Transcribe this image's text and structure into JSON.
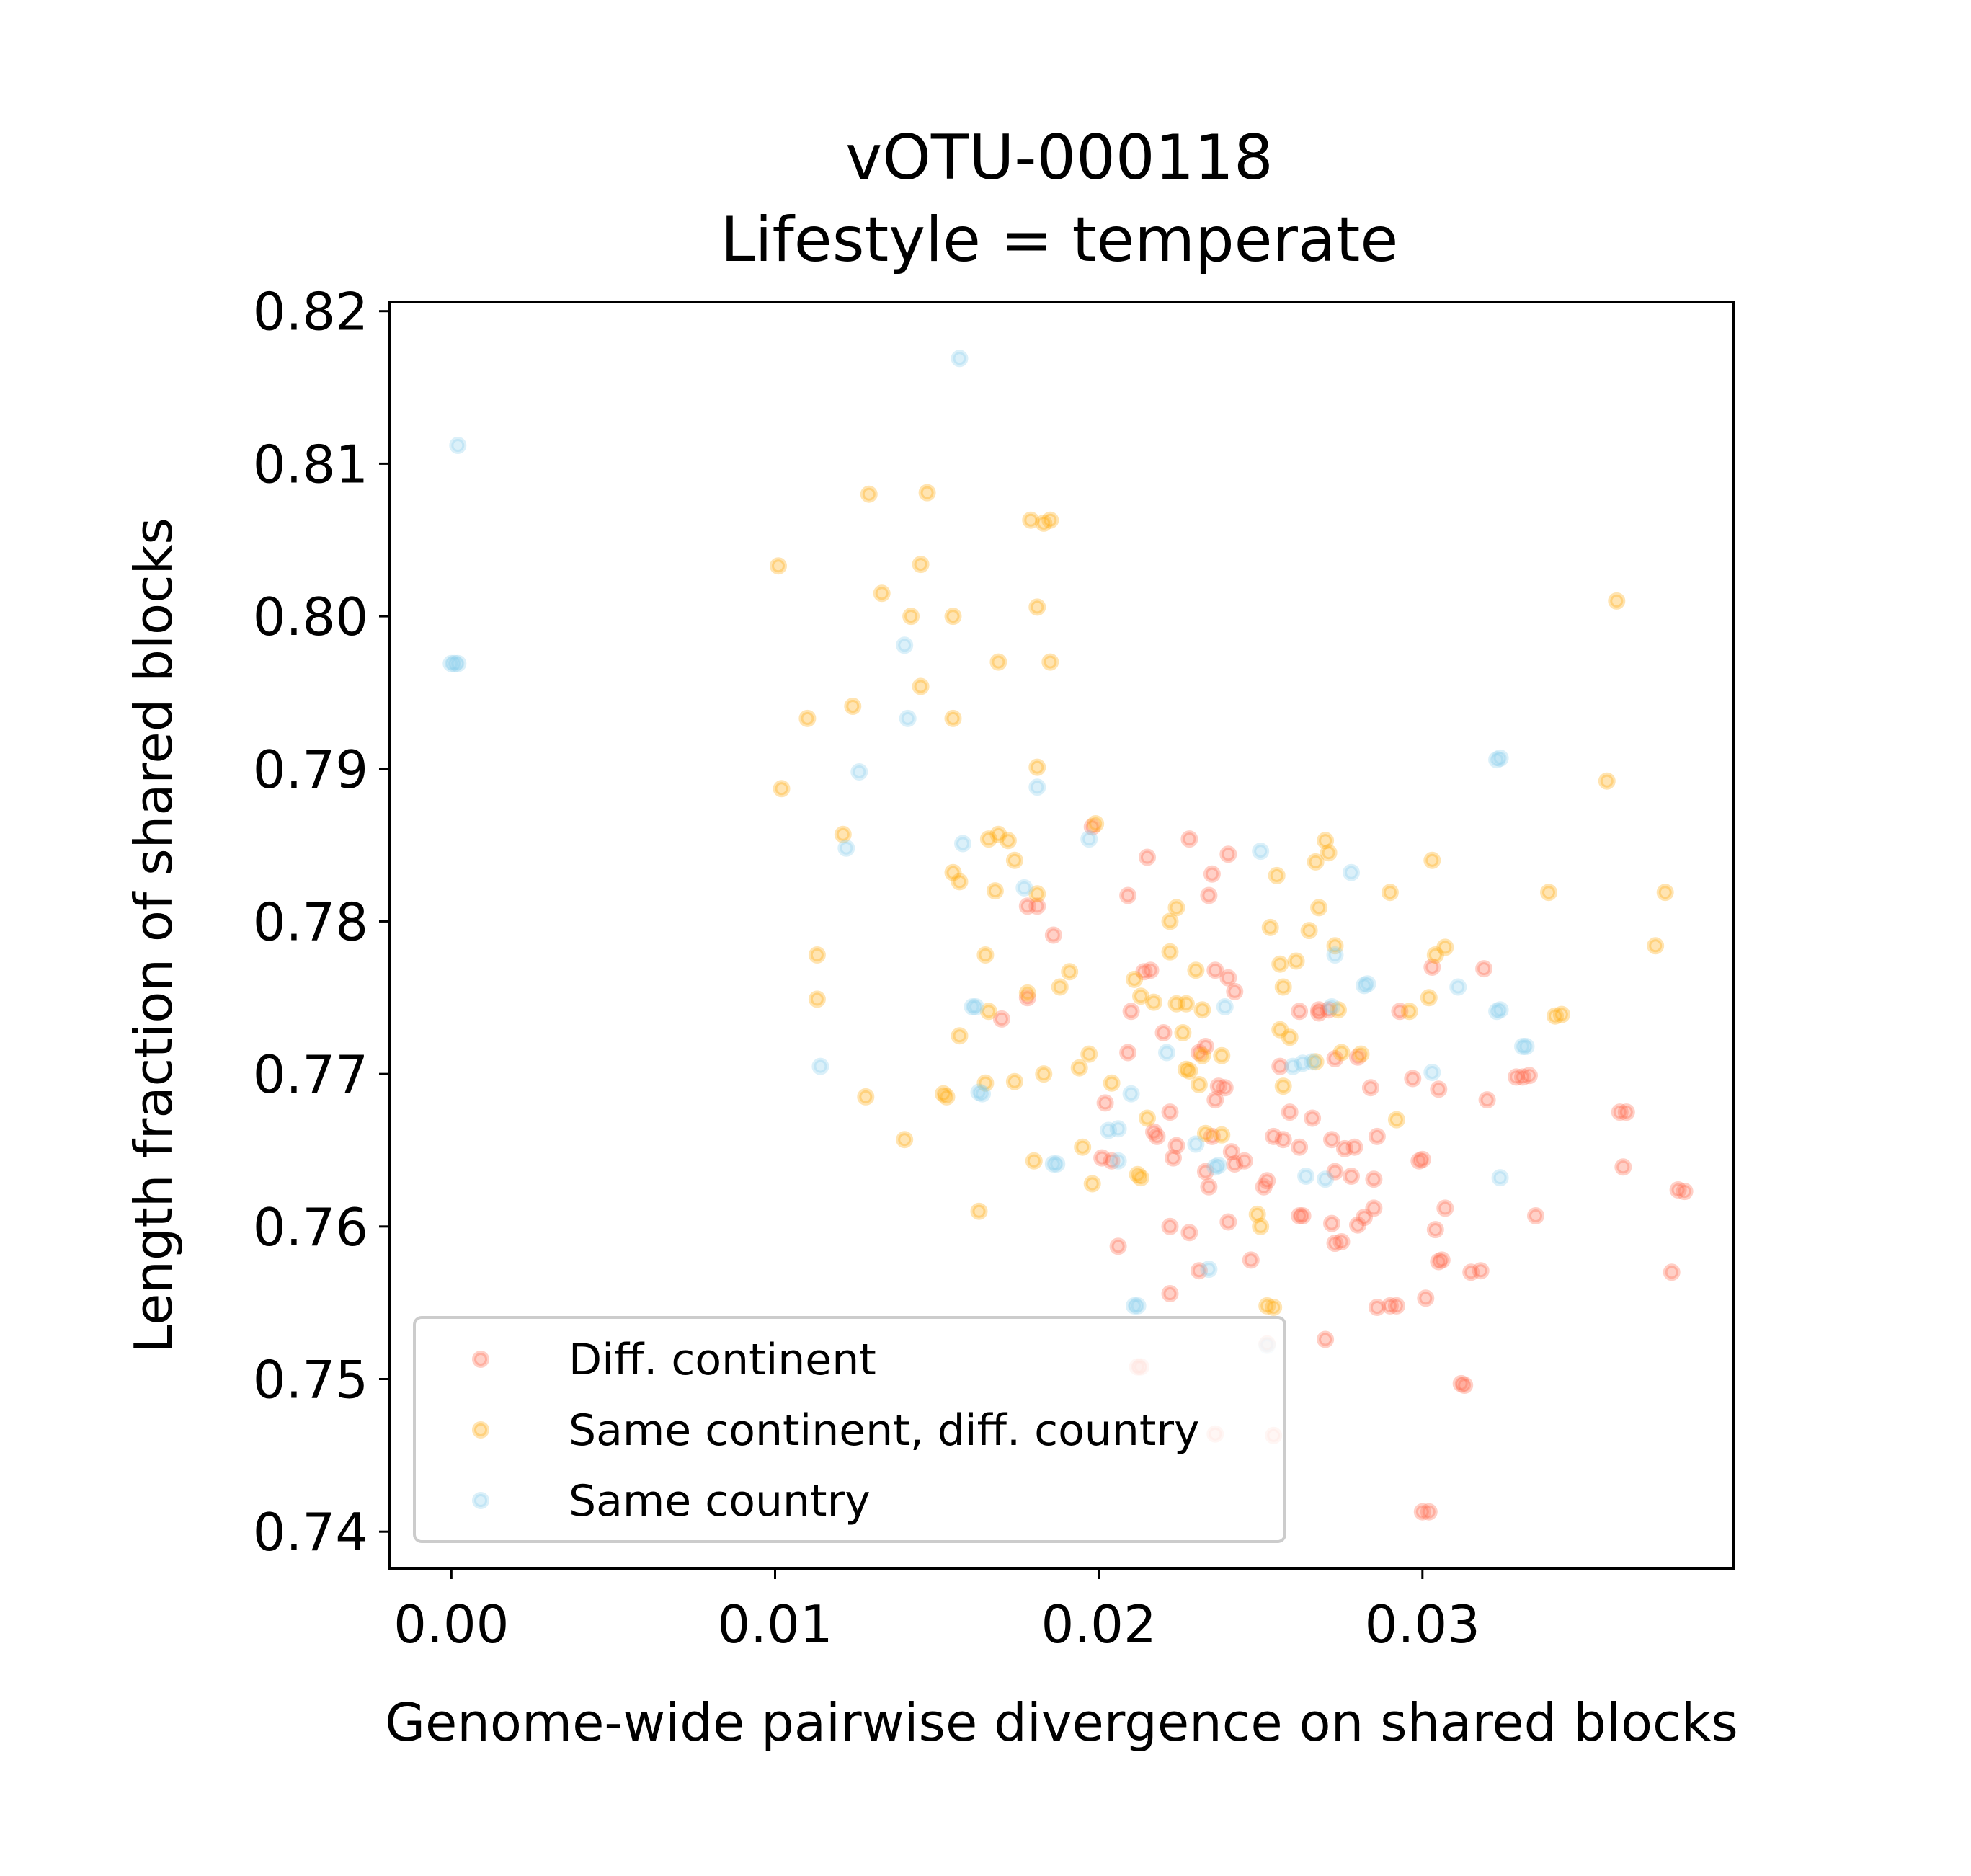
{
  "chart_data": {
    "type": "scatter",
    "title": "vOTU-000118",
    "subtitle": "Lifestyle = temperate",
    "xlabel": "Genome-wide pairwise divergence on shared blocks",
    "ylabel": "Length fraction of shared blocks",
    "xlim": [
      -0.0019,
      0.0396
    ],
    "ylim": [
      0.7376,
      0.8206
    ],
    "xticks": [
      "0.00",
      "0.01",
      "0.02",
      "0.03"
    ],
    "xtick_values": [
      0.0,
      0.01,
      0.02,
      0.03
    ],
    "yticks": [
      "0.74",
      "0.75",
      "0.76",
      "0.77",
      "0.78",
      "0.79",
      "0.80",
      "0.81",
      "0.82"
    ],
    "ytick_values": [
      0.74,
      0.75,
      0.76,
      0.77,
      0.78,
      0.79,
      0.8,
      0.81,
      0.82
    ],
    "legend_position": "lower-left",
    "series": [
      {
        "name": "Diff. continent",
        "color": "#ff6347",
        "points": [
          [
            0.0198,
            0.7862
          ],
          [
            0.0209,
            0.7817
          ],
          [
            0.0215,
            0.7842
          ],
          [
            0.0228,
            0.7854
          ],
          [
            0.024,
            0.7844
          ],
          [
            0.0235,
            0.7831
          ],
          [
            0.0234,
            0.7817
          ],
          [
            0.0178,
            0.781
          ],
          [
            0.0181,
            0.781
          ],
          [
            0.0186,
            0.7791
          ],
          [
            0.0178,
            0.775
          ],
          [
            0.017,
            0.7736
          ],
          [
            0.0214,
            0.7767
          ],
          [
            0.0216,
            0.7768
          ],
          [
            0.0236,
            0.7768
          ],
          [
            0.024,
            0.7763
          ],
          [
            0.0242,
            0.7754
          ],
          [
            0.021,
            0.7741
          ],
          [
            0.022,
            0.7727
          ],
          [
            0.0209,
            0.7714
          ],
          [
            0.0231,
            0.7714
          ],
          [
            0.0237,
            0.7692
          ],
          [
            0.0239,
            0.7691
          ],
          [
            0.0236,
            0.7683
          ],
          [
            0.0218,
            0.7659
          ],
          [
            0.0224,
            0.7653
          ],
          [
            0.0223,
            0.7645
          ],
          [
            0.0235,
            0.7659
          ],
          [
            0.0241,
            0.7649
          ],
          [
            0.0245,
            0.7643
          ],
          [
            0.0242,
            0.7641
          ],
          [
            0.0201,
            0.7645
          ],
          [
            0.0204,
            0.7643
          ],
          [
            0.0202,
            0.7681
          ],
          [
            0.0233,
            0.7636
          ],
          [
            0.0234,
            0.7626
          ],
          [
            0.0252,
            0.763
          ],
          [
            0.0251,
            0.7626
          ],
          [
            0.0254,
            0.7659
          ],
          [
            0.0257,
            0.7657
          ],
          [
            0.0262,
            0.7652
          ],
          [
            0.0266,
            0.7671
          ],
          [
            0.0256,
            0.7705
          ],
          [
            0.0262,
            0.7741
          ],
          [
            0.0268,
            0.7742
          ],
          [
            0.0273,
            0.771
          ],
          [
            0.0268,
            0.774
          ],
          [
            0.0271,
            0.7742
          ],
          [
            0.028,
            0.7711
          ],
          [
            0.0284,
            0.7691
          ],
          [
            0.0276,
            0.7651
          ],
          [
            0.0279,
            0.7652
          ],
          [
            0.0286,
            0.7659
          ],
          [
            0.0272,
            0.7657
          ],
          [
            0.0273,
            0.7636
          ],
          [
            0.0278,
            0.7633
          ],
          [
            0.0285,
            0.7631
          ],
          [
            0.0272,
            0.7602
          ],
          [
            0.0262,
            0.7607
          ],
          [
            0.0263,
            0.7607
          ],
          [
            0.0275,
            0.759
          ],
          [
            0.0282,
            0.7606
          ],
          [
            0.0285,
            0.7612
          ],
          [
            0.028,
            0.7601
          ],
          [
            0.0273,
            0.7589
          ],
          [
            0.0293,
            0.7741
          ],
          [
            0.0297,
            0.7697
          ],
          [
            0.0305,
            0.769
          ],
          [
            0.0303,
            0.777
          ],
          [
            0.0319,
            0.7769
          ],
          [
            0.03,
            0.7644
          ],
          [
            0.0299,
            0.7643
          ],
          [
            0.0307,
            0.7612
          ],
          [
            0.0304,
            0.7598
          ],
          [
            0.0305,
            0.7577
          ],
          [
            0.0306,
            0.7578
          ],
          [
            0.0301,
            0.7553
          ],
          [
            0.0315,
            0.757
          ],
          [
            0.0318,
            0.7571
          ],
          [
            0.032,
            0.7683
          ],
          [
            0.0329,
            0.7698
          ],
          [
            0.0331,
            0.7698
          ],
          [
            0.0333,
            0.7699
          ],
          [
            0.0335,
            0.7607
          ],
          [
            0.0292,
            0.7548
          ],
          [
            0.029,
            0.7548
          ],
          [
            0.0286,
            0.7547
          ],
          [
            0.027,
            0.7526
          ],
          [
            0.0312,
            0.7497
          ],
          [
            0.0313,
            0.7496
          ],
          [
            0.0302,
            0.7413
          ],
          [
            0.03,
            0.7413
          ],
          [
            0.0361,
            0.7675
          ],
          [
            0.0363,
            0.7675
          ],
          [
            0.0362,
            0.7639
          ],
          [
            0.0379,
            0.7624
          ],
          [
            0.0381,
            0.7623
          ],
          [
            0.0377,
            0.757
          ],
          [
            0.0212,
            0.7508
          ],
          [
            0.0213,
            0.7508
          ],
          [
            0.0222,
            0.7556
          ],
          [
            0.0228,
            0.7596
          ],
          [
            0.0222,
            0.76
          ],
          [
            0.0231,
            0.7571
          ],
          [
            0.024,
            0.7603
          ],
          [
            0.0247,
            0.7578
          ],
          [
            0.0252,
            0.7523
          ],
          [
            0.0254,
            0.7463
          ],
          [
            0.0236,
            0.7464
          ],
          [
            0.0206,
            0.7587
          ],
          [
            0.0233,
            0.7718
          ],
          [
            0.0259,
            0.7675
          ],
          [
            0.0222,
            0.7675
          ],
          [
            0.0217,
            0.7662
          ]
        ]
      },
      {
        "name": "Same continent, diff. country",
        "color": "#ffa500",
        "points": [
          [
            0.0101,
            0.8033
          ],
          [
            0.0129,
            0.808
          ],
          [
            0.0147,
            0.8081
          ],
          [
            0.0179,
            0.8063
          ],
          [
            0.0185,
            0.8063
          ],
          [
            0.0183,
            0.8061
          ],
          [
            0.0145,
            0.8034
          ],
          [
            0.0133,
            0.8015
          ],
          [
            0.0142,
            0.8
          ],
          [
            0.0155,
            0.8
          ],
          [
            0.0181,
            0.8006
          ],
          [
            0.0169,
            0.797
          ],
          [
            0.0185,
            0.797
          ],
          [
            0.0145,
            0.7954
          ],
          [
            0.011,
            0.7933
          ],
          [
            0.0124,
            0.7941
          ],
          [
            0.0155,
            0.7933
          ],
          [
            0.0102,
            0.7887
          ],
          [
            0.0181,
            0.7901
          ],
          [
            0.0121,
            0.7857
          ],
          [
            0.0169,
            0.7857
          ],
          [
            0.0172,
            0.7853
          ],
          [
            0.0166,
            0.7854
          ],
          [
            0.0199,
            0.7864
          ],
          [
            0.0174,
            0.784
          ],
          [
            0.0155,
            0.7832
          ],
          [
            0.0157,
            0.7826
          ],
          [
            0.0168,
            0.782
          ],
          [
            0.0181,
            0.7818
          ],
          [
            0.0165,
            0.7778
          ],
          [
            0.0113,
            0.7778
          ],
          [
            0.0113,
            0.7749
          ],
          [
            0.0166,
            0.7741
          ],
          [
            0.0178,
            0.7753
          ],
          [
            0.0188,
            0.7757
          ],
          [
            0.0191,
            0.7767
          ],
          [
            0.0197,
            0.7713
          ],
          [
            0.0194,
            0.7704
          ],
          [
            0.0183,
            0.77
          ],
          [
            0.0157,
            0.7725
          ],
          [
            0.0165,
            0.7694
          ],
          [
            0.0174,
            0.7695
          ],
          [
            0.0152,
            0.7687
          ],
          [
            0.0153,
            0.7685
          ],
          [
            0.0128,
            0.7685
          ],
          [
            0.014,
            0.7657
          ],
          [
            0.0163,
            0.761
          ],
          [
            0.018,
            0.7643
          ],
          [
            0.0195,
            0.7652
          ],
          [
            0.0198,
            0.7628
          ],
          [
            0.0212,
            0.7634
          ],
          [
            0.0213,
            0.7632
          ],
          [
            0.0204,
            0.7694
          ],
          [
            0.0211,
            0.7762
          ],
          [
            0.0213,
            0.7751
          ],
          [
            0.0217,
            0.7747
          ],
          [
            0.0222,
            0.778
          ],
          [
            0.0222,
            0.78
          ],
          [
            0.0224,
            0.7809
          ],
          [
            0.0224,
            0.7746
          ],
          [
            0.0227,
            0.7746
          ],
          [
            0.023,
            0.7768
          ],
          [
            0.0232,
            0.7742
          ],
          [
            0.0226,
            0.7727
          ],
          [
            0.0232,
            0.7712
          ],
          [
            0.0238,
            0.7712
          ],
          [
            0.0227,
            0.7703
          ],
          [
            0.0228,
            0.7702
          ],
          [
            0.0215,
            0.7671
          ],
          [
            0.0231,
            0.7693
          ],
          [
            0.0233,
            0.7661
          ],
          [
            0.0238,
            0.766
          ],
          [
            0.025,
            0.76
          ],
          [
            0.0249,
            0.7608
          ],
          [
            0.0252,
            0.7548
          ],
          [
            0.0254,
            0.7547
          ],
          [
            0.0257,
            0.7757
          ],
          [
            0.0256,
            0.7729
          ],
          [
            0.0259,
            0.7724
          ],
          [
            0.0257,
            0.7692
          ],
          [
            0.0256,
            0.7772
          ],
          [
            0.0261,
            0.7774
          ],
          [
            0.0253,
            0.7796
          ],
          [
            0.0255,
            0.783
          ],
          [
            0.0265,
            0.7794
          ],
          [
            0.0268,
            0.7809
          ],
          [
            0.0267,
            0.7839
          ],
          [
            0.027,
            0.7853
          ],
          [
            0.0271,
            0.7845
          ],
          [
            0.0273,
            0.7784
          ],
          [
            0.0274,
            0.7742
          ],
          [
            0.0275,
            0.7714
          ],
          [
            0.0281,
            0.7713
          ],
          [
            0.029,
            0.7819
          ],
          [
            0.0296,
            0.7741
          ],
          [
            0.0303,
            0.784
          ],
          [
            0.0302,
            0.775
          ],
          [
            0.0304,
            0.7778
          ],
          [
            0.0307,
            0.7783
          ],
          [
            0.0292,
            0.767
          ],
          [
            0.0341,
            0.7738
          ],
          [
            0.0343,
            0.7739
          ],
          [
            0.0339,
            0.7819
          ],
          [
            0.036,
            0.801
          ],
          [
            0.0357,
            0.7892
          ],
          [
            0.0372,
            0.7784
          ],
          [
            0.0375,
            0.7819
          ],
          [
            0.0267,
            0.7708
          ]
        ]
      },
      {
        "name": "Same country",
        "color": "#87ceeb",
        "points": [
          [
            0.0157,
            0.8169
          ],
          [
            0.0002,
            0.8112
          ],
          [
            0.0,
            0.7969
          ],
          [
            0.0001,
            0.7969
          ],
          [
            0.0002,
            0.7969
          ],
          [
            0.014,
            0.7981
          ],
          [
            0.0141,
            0.7933
          ],
          [
            0.0126,
            0.7898
          ],
          [
            0.0181,
            0.7888
          ],
          [
            0.0122,
            0.7848
          ],
          [
            0.0158,
            0.7851
          ],
          [
            0.0177,
            0.7822
          ],
          [
            0.0197,
            0.7854
          ],
          [
            0.025,
            0.7846
          ],
          [
            0.0278,
            0.7832
          ],
          [
            0.0114,
            0.7705
          ],
          [
            0.0161,
            0.7744
          ],
          [
            0.0162,
            0.7744
          ],
          [
            0.0163,
            0.7688
          ],
          [
            0.0164,
            0.7687
          ],
          [
            0.0186,
            0.7641
          ],
          [
            0.0187,
            0.7641
          ],
          [
            0.0203,
            0.7663
          ],
          [
            0.0206,
            0.7664
          ],
          [
            0.021,
            0.7687
          ],
          [
            0.0206,
            0.7643
          ],
          [
            0.0211,
            0.7548
          ],
          [
            0.0212,
            0.7548
          ],
          [
            0.023,
            0.7654
          ],
          [
            0.0236,
            0.7639
          ],
          [
            0.0237,
            0.764
          ],
          [
            0.0239,
            0.7744
          ],
          [
            0.0234,
            0.7572
          ],
          [
            0.0252,
            0.7522
          ],
          [
            0.026,
            0.7705
          ],
          [
            0.0263,
            0.7707
          ],
          [
            0.0266,
            0.7708
          ],
          [
            0.0264,
            0.7633
          ],
          [
            0.027,
            0.7631
          ],
          [
            0.0272,
            0.7744
          ],
          [
            0.0273,
            0.7778
          ],
          [
            0.0282,
            0.7758
          ],
          [
            0.0283,
            0.7759
          ],
          [
            0.0303,
            0.7701
          ],
          [
            0.0311,
            0.7757
          ],
          [
            0.0323,
            0.7906
          ],
          [
            0.0324,
            0.7907
          ],
          [
            0.0323,
            0.7741
          ],
          [
            0.0324,
            0.7742
          ],
          [
            0.0331,
            0.7718
          ],
          [
            0.0332,
            0.7718
          ],
          [
            0.0324,
            0.7632
          ],
          [
            0.0221,
            0.7714
          ]
        ]
      }
    ]
  }
}
